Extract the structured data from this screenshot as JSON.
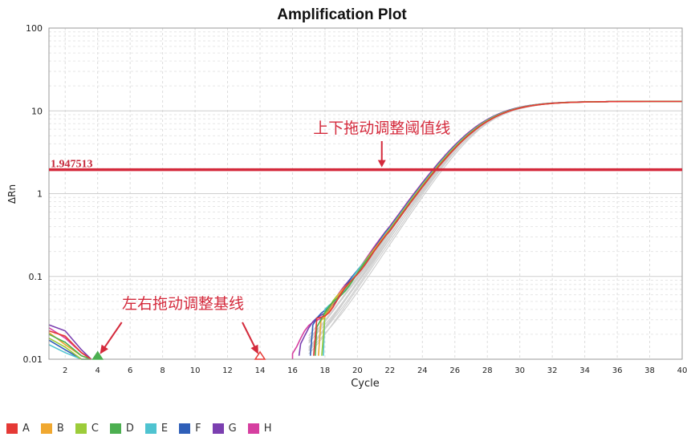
{
  "chart_data": {
    "type": "line",
    "title": "Amplification Plot",
    "xlabel": "Cycle",
    "ylabel": "ΔRn",
    "yscale": "log",
    "xlim": [
      1,
      40
    ],
    "ylim": [
      0.01,
      100
    ],
    "x_ticks": [
      2,
      4,
      6,
      8,
      10,
      12,
      14,
      16,
      18,
      20,
      22,
      24,
      26,
      28,
      30,
      32,
      34,
      36,
      38,
      40
    ],
    "y_ticks": [
      0.01,
      0.1,
      1,
      10,
      100
    ],
    "y_tick_labels": [
      "0.01",
      "0.1",
      "1",
      "10",
      "100"
    ],
    "grid": true,
    "legend_position": "bottom-left",
    "threshold": {
      "value": 1.947513,
      "label": "1.947513",
      "color": "#d42a3c"
    },
    "baseline_markers": [
      {
        "cycle": 4,
        "color": "#4caf50"
      },
      {
        "cycle": 14,
        "color": "#e53935"
      }
    ],
    "annotations": [
      {
        "text": "上下拖动调整阈值线",
        "color": "#d42a3c",
        "anchor_x": 21.5,
        "anchor_y": 1.947513
      },
      {
        "text": "左右拖动调整基线",
        "color": "#d42a3c"
      }
    ],
    "series": [
      {
        "name": "A",
        "color": "#e53935",
        "early": [
          0.022,
          0.019,
          0.012
        ],
        "late_start": 17.3,
        "late_start_value": 0.011
      },
      {
        "name": "B",
        "color": "#f0a830",
        "early": [
          0.021,
          0.015,
          0.011
        ],
        "late_start": 17.6,
        "late_start_value": 0.011
      },
      {
        "name": "C",
        "color": "#9ccc3a",
        "early": [
          0.018,
          0.014,
          0.01
        ],
        "late_start": 17.8,
        "late_start_value": 0.011
      },
      {
        "name": "D",
        "color": "#4caf50",
        "early": [
          0.02,
          0.016,
          0.011
        ],
        "late_start": 17.4,
        "late_start_value": 0.011
      },
      {
        "name": "E",
        "color": "#4fc3d0",
        "early": [
          0.015,
          0.012,
          0.01
        ],
        "late_start": 17.9,
        "late_start_value": 0.011
      },
      {
        "name": "F",
        "color": "#2f5fb8",
        "early": [
          0.017,
          0.013,
          0.01
        ],
        "late_start": 17.1,
        "late_start_value": 0.011
      },
      {
        "name": "G",
        "color": "#7b3fb0",
        "early": [
          0.026,
          0.022,
          0.013
        ],
        "late_start": 16.4,
        "late_start_value": 0.011
      },
      {
        "name": "H",
        "color": "#d63fa0",
        "early": [
          0.024,
          0.018,
          0.012
        ],
        "late_start": 16.0,
        "late_start_value": 0.01
      }
    ]
  }
}
